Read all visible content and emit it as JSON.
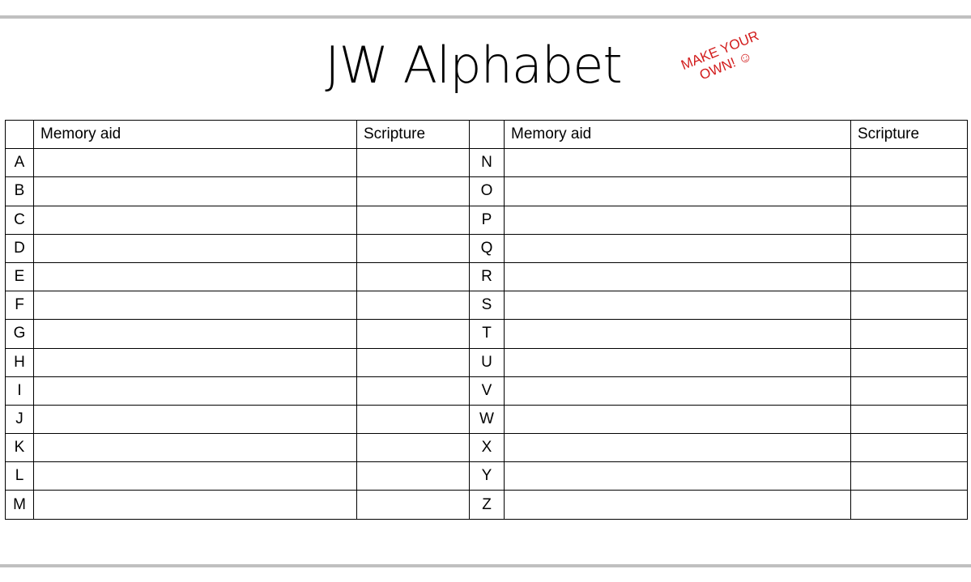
{
  "title": "JW Alphabet",
  "stamp": {
    "line1": "MAKE YOUR",
    "line2": "OWN! ☺",
    "color": "#d21b1b"
  },
  "table": {
    "headers": {
      "memory_aid": "Memory aid",
      "scripture": "Scripture"
    },
    "left_letters": [
      "A",
      "B",
      "C",
      "D",
      "E",
      "F",
      "G",
      "H",
      "I",
      "J",
      "K",
      "L",
      "M"
    ],
    "right_letters": [
      "N",
      "O",
      "P",
      "Q",
      "R",
      "S",
      "T",
      "U",
      "V",
      "W",
      "X",
      "Y",
      "Z"
    ]
  }
}
